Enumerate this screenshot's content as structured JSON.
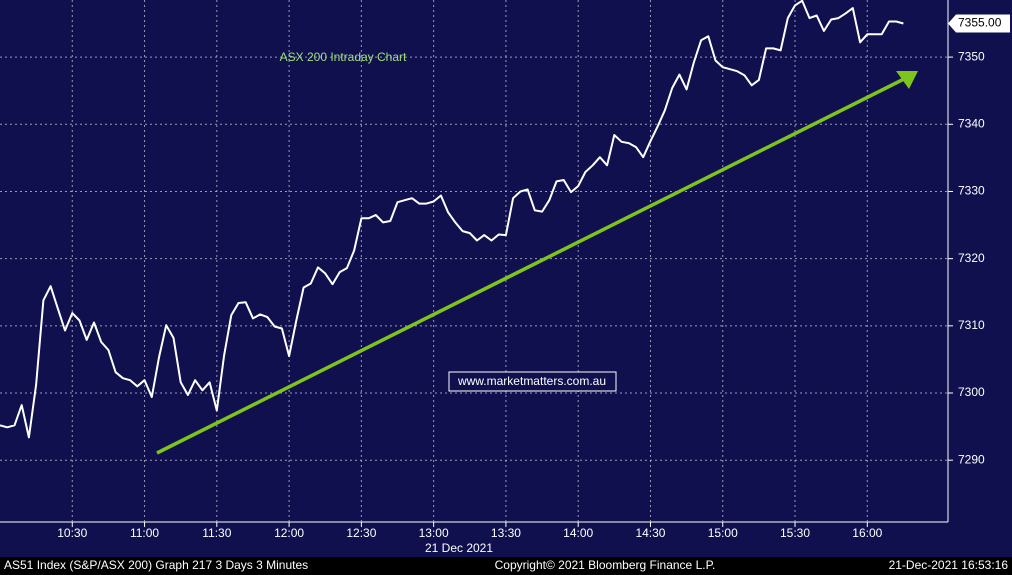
{
  "chart_data": {
    "type": "line",
    "title": "ASX 200 Intraday Chart",
    "x_label": "21 Dec 2021",
    "annotation": "www.marketmatters.com.au",
    "last_value_label": {
      "value": 7355,
      "label": "7355.00"
    },
    "footer": {
      "left": "AS51 Index (S&P/ASX 200) Graph 217 3 Days 3 Minutes",
      "center": "Copyright© 2021 Bloomberg Finance L.P.",
      "right": "21-Dec-2021 16:53:16"
    },
    "x": [
      600,
      603,
      606,
      609,
      612,
      615,
      618,
      621,
      624,
      627,
      630,
      633,
      636,
      639,
      642,
      645,
      648,
      651,
      654,
      657,
      660,
      663,
      666,
      669,
      672,
      675,
      678,
      681,
      684,
      687,
      690,
      693,
      696,
      699,
      702,
      705,
      708,
      711,
      714,
      717,
      720,
      723,
      726,
      729,
      732,
      735,
      738,
      741,
      744,
      747,
      750,
      753,
      756,
      759,
      762,
      765,
      768,
      771,
      774,
      777,
      780,
      783,
      786,
      789,
      792,
      795,
      798,
      801,
      804,
      807,
      810,
      813,
      816,
      819,
      822,
      825,
      828,
      831,
      834,
      837,
      840,
      843,
      846,
      849,
      852,
      855,
      858,
      861,
      864,
      867,
      870,
      873,
      876,
      879,
      882,
      885,
      888,
      891,
      894,
      897,
      900,
      903,
      906,
      909,
      912,
      915,
      918,
      921,
      924,
      927,
      930,
      933,
      936,
      939,
      942,
      945,
      948,
      951,
      954,
      957,
      960,
      963,
      966,
      969,
      972,
      975
    ],
    "series": [
      {
        "name": "AS51 Index",
        "color": "#ffffff",
        "values": [
          7295.2,
          7294.9,
          7295.2,
          7298.2,
          7293.4,
          7301.2,
          7313.8,
          7315.9,
          7312.6,
          7309.3,
          7311.9,
          7310.8,
          7307.9,
          7310.5,
          7307.6,
          7306.4,
          7303.1,
          7302.2,
          7301.9,
          7301.0,
          7301.9,
          7299.4,
          7305.3,
          7310.1,
          7308.2,
          7301.6,
          7299.7,
          7301.9,
          7300.4,
          7301.6,
          7297.4,
          7305.6,
          7311.6,
          7313.4,
          7313.5,
          7311.1,
          7311.7,
          7311.3,
          7309.9,
          7309.6,
          7305.5,
          7310.8,
          7315.7,
          7316.3,
          7318.7,
          7317.8,
          7316.2,
          7318.0,
          7318.6,
          7321.2,
          7326.0,
          7326.0,
          7326.5,
          7325.4,
          7325.6,
          7328.4,
          7328.7,
          7329.0,
          7328.2,
          7328.2,
          7328.5,
          7329.4,
          7326.9,
          7325.4,
          7324.1,
          7323.8,
          7322.7,
          7323.5,
          7322.7,
          7323.6,
          7323.5,
          7329.0,
          7330.0,
          7330.3,
          7327.2,
          7327.0,
          7328.7,
          7331.5,
          7331.7,
          7329.9,
          7330.8,
          7332.9,
          7333.9,
          7335.1,
          7333.9,
          7338.4,
          7337.4,
          7337.2,
          7336.6,
          7335.1,
          7337.5,
          7339.7,
          7342.1,
          7345.4,
          7347.4,
          7345.2,
          7349.2,
          7352.5,
          7353.1,
          7349.5,
          7348.5,
          7348.2,
          7347.9,
          7347.3,
          7345.8,
          7346.6,
          7351.3,
          7351.3,
          7351.0,
          7355.8,
          7357.7,
          7358.4,
          7355.8,
          7356.2,
          7353.9,
          7355.6,
          7355.8,
          7356.5,
          7357.3,
          7352.2,
          7353.4,
          7353.4,
          7353.4,
          7355.3,
          7355.3,
          7355
        ]
      }
    ],
    "xlim": [
      600,
      993.5
    ],
    "xticks": [
      {
        "value": 630,
        "label": "10:30"
      },
      {
        "value": 660,
        "label": "11:00"
      },
      {
        "value": 690,
        "label": "11:30"
      },
      {
        "value": 720,
        "label": "12:00"
      },
      {
        "value": 750,
        "label": "12:30"
      },
      {
        "value": 780,
        "label": "13:00"
      },
      {
        "value": 810,
        "label": "13:30"
      },
      {
        "value": 840,
        "label": "14:00"
      },
      {
        "value": 870,
        "label": "14:30"
      },
      {
        "value": 900,
        "label": "15:00"
      },
      {
        "value": 930,
        "label": "15:30"
      },
      {
        "value": 960,
        "label": "16:00"
      }
    ],
    "ylim": [
      7280.8,
      7358.5
    ],
    "yticks": [
      7290,
      7300,
      7310,
      7320,
      7330,
      7340,
      7350
    ],
    "grid": true
  }
}
